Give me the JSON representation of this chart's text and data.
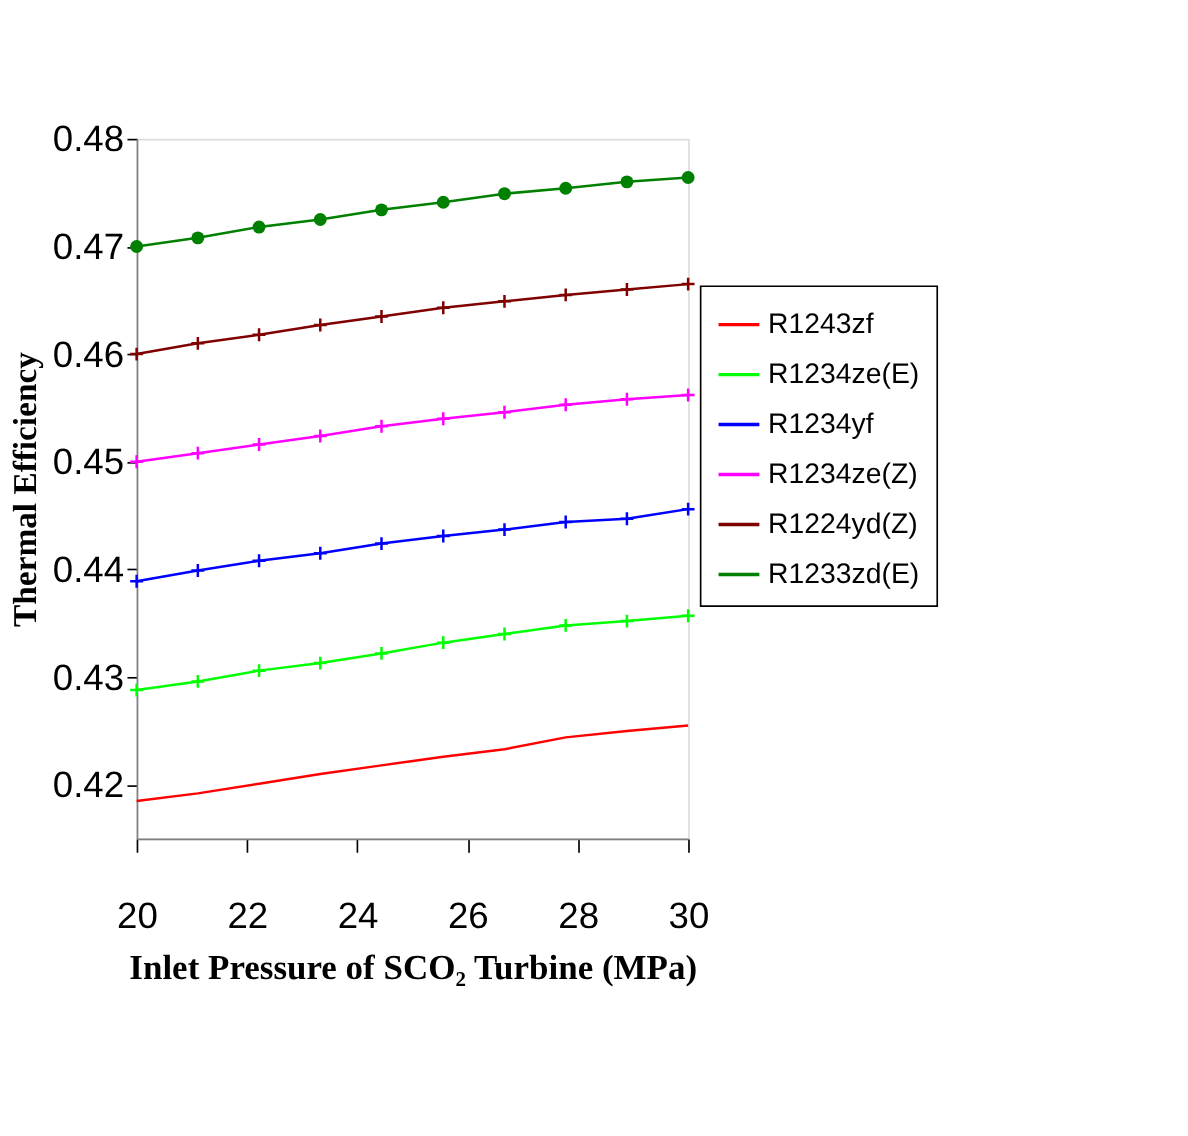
{
  "chart_data": {
    "type": "line",
    "xlabel": "Inlet Pressure of SCO₂ Turbine (MPa)",
    "ylabel": "Thermal Efficiency",
    "x": [
      20,
      21.11,
      22.22,
      23.33,
      24.44,
      25.56,
      26.67,
      27.78,
      28.89,
      30
    ],
    "xlim": [
      20,
      30
    ],
    "xticks": [
      20,
      22,
      24,
      26,
      28,
      30
    ],
    "ylim": [
      0.415,
      0.48
    ],
    "yticks": [
      0.42,
      0.43,
      0.44,
      0.45,
      0.46,
      0.47,
      0.48
    ],
    "grid": false,
    "legend": "right",
    "line_style": "solid",
    "series": [
      {
        "name": "R1243zf",
        "color": "#ff0000",
        "marker": "none",
        "values": [
          0.4185,
          0.4192,
          0.4201,
          0.421,
          0.4218,
          0.4226,
          0.4233,
          0.4244,
          0.425,
          0.4255
        ]
      },
      {
        "name": "R1234ze(E)",
        "color": "#00ff00",
        "marker": "cross",
        "values": [
          0.4288,
          0.4296,
          0.4306,
          0.4313,
          0.4322,
          0.4332,
          0.434,
          0.4348,
          0.4352,
          0.4357
        ]
      },
      {
        "name": "R1234yf",
        "color": "#0000ff",
        "marker": "cross",
        "values": [
          0.4389,
          0.4399,
          0.4408,
          0.4415,
          0.4424,
          0.4431,
          0.4437,
          0.4444,
          0.4447,
          0.4456
        ]
      },
      {
        "name": "R1234ze(Z)",
        "color": "#ff00ff",
        "marker": "cross",
        "values": [
          0.45,
          0.4508,
          0.4516,
          0.4524,
          0.4533,
          0.454,
          0.4546,
          0.4553,
          0.4558,
          0.4562
        ]
      },
      {
        "name": "R1224yd(Z)",
        "color": "#800000",
        "marker": "cross",
        "values": [
          0.46,
          0.461,
          0.4618,
          0.4627,
          0.4635,
          0.4643,
          0.4649,
          0.4655,
          0.466,
          0.4665
        ]
      },
      {
        "name": "R1233zd(E)",
        "color": "#008000",
        "marker": "circle",
        "values": [
          0.47,
          0.4708,
          0.4718,
          0.4725,
          0.4734,
          0.4741,
          0.4749,
          0.4754,
          0.476,
          0.4764
        ]
      }
    ]
  }
}
